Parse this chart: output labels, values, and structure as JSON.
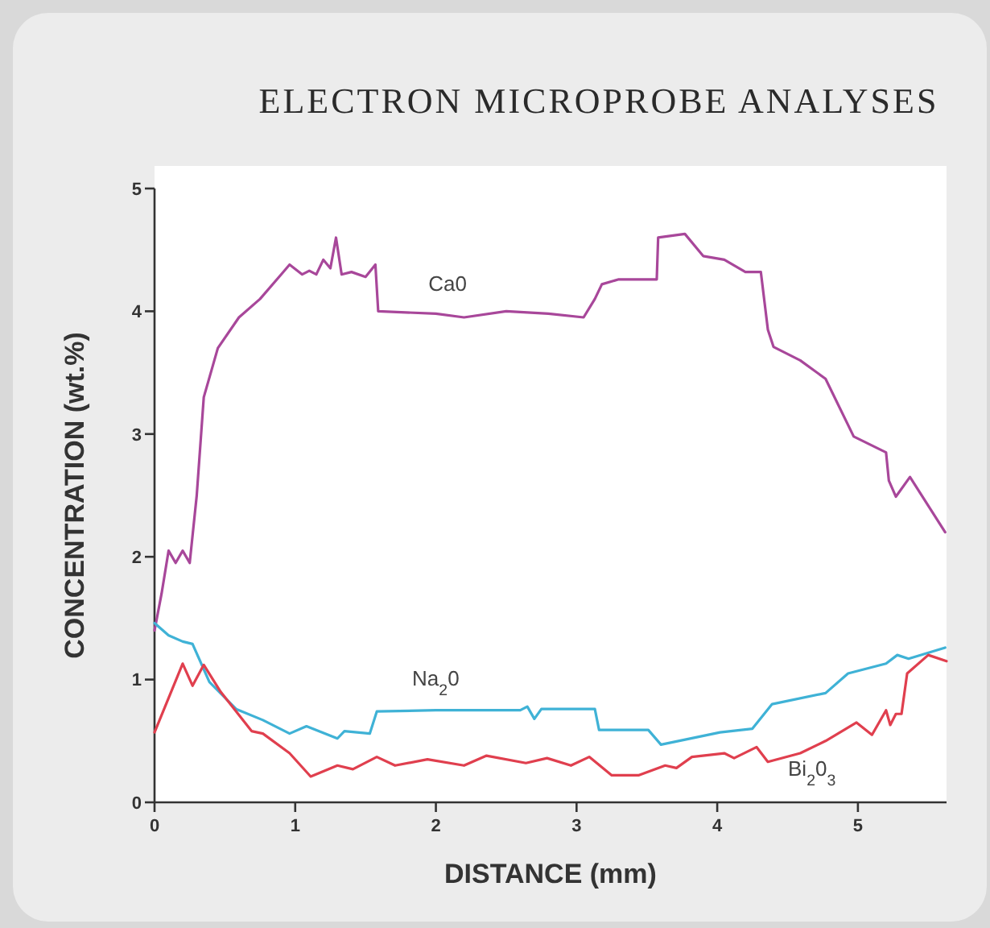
{
  "chart_data": {
    "type": "line",
    "title": "ELECTRON MICROPROBE ANALYSES",
    "xlabel": "DISTANCE (mm)",
    "ylabel": "CONCENTRATION (wt.%)",
    "xlim": [
      0,
      5.63
    ],
    "ylim": [
      0,
      5
    ],
    "xticks": [
      0,
      1,
      2,
      3,
      4,
      5
    ],
    "yticks": [
      0,
      1,
      2,
      3,
      4,
      5
    ],
    "grid": false,
    "line_style": "solid",
    "series": [
      {
        "name": "Ca0",
        "color": "#a8479a",
        "x": [
          0,
          0.05,
          0.1,
          0.15,
          0.2,
          0.25,
          0.3,
          0.35,
          0.45,
          0.6,
          0.75,
          0.9,
          0.96,
          1.05,
          1.1,
          1.15,
          1.2,
          1.25,
          1.29,
          1.33,
          1.4,
          1.5,
          1.57,
          1.59,
          2.0,
          2.2,
          2.5,
          2.8,
          3.05,
          3.13,
          3.18,
          3.3,
          3.57,
          3.58,
          3.77,
          3.9,
          4.05,
          4.2,
          4.31,
          4.36,
          4.4,
          4.59,
          4.77,
          4.97,
          5.2,
          5.22,
          5.27,
          5.37,
          5.62
        ],
        "values": [
          1.4,
          1.7,
          2.05,
          1.95,
          2.05,
          1.95,
          2.5,
          3.3,
          3.7,
          3.95,
          4.1,
          4.3,
          4.38,
          4.3,
          4.33,
          4.3,
          4.42,
          4.35,
          4.6,
          4.3,
          4.32,
          4.28,
          4.38,
          4.0,
          3.98,
          3.95,
          4.0,
          3.98,
          3.95,
          4.1,
          4.22,
          4.26,
          4.26,
          4.6,
          4.63,
          4.45,
          4.42,
          4.32,
          4.32,
          3.85,
          3.71,
          3.6,
          3.45,
          2.98,
          2.85,
          2.62,
          2.49,
          2.65,
          2.2
        ]
      },
      {
        "name": "Na$_{2}$0",
        "color": "#3fb2d6",
        "x": [
          0,
          0.1,
          0.2,
          0.27,
          0.39,
          0.58,
          0.77,
          0.96,
          1.08,
          1.3,
          1.35,
          1.53,
          1.58,
          2.0,
          2.6,
          2.65,
          2.7,
          2.75,
          3.13,
          3.16,
          3.51,
          3.6,
          4.02,
          4.25,
          4.39,
          4.77,
          4.93,
          5.2,
          5.28,
          5.36,
          5.62
        ],
        "values": [
          1.46,
          1.36,
          1.31,
          1.29,
          0.98,
          0.76,
          0.67,
          0.56,
          0.62,
          0.52,
          0.58,
          0.56,
          0.74,
          0.75,
          0.75,
          0.78,
          0.68,
          0.76,
          0.76,
          0.59,
          0.59,
          0.47,
          0.57,
          0.6,
          0.8,
          0.89,
          1.05,
          1.13,
          1.2,
          1.17,
          1.26
        ]
      },
      {
        "name": "Bi$_{2}$0$_{3}$",
        "color": "#e03f4e",
        "x": [
          0,
          0.2,
          0.27,
          0.35,
          0.47,
          0.69,
          0.77,
          0.96,
          1.11,
          1.3,
          1.41,
          1.58,
          1.71,
          1.94,
          2.2,
          2.36,
          2.64,
          2.79,
          2.96,
          3.09,
          3.25,
          3.44,
          3.63,
          3.71,
          3.82,
          4.05,
          4.12,
          4.28,
          4.36,
          4.59,
          4.77,
          4.99,
          5.1,
          5.2,
          5.23,
          5.27,
          5.31,
          5.35,
          5.5,
          5.63
        ],
        "values": [
          0.57,
          1.13,
          0.95,
          1.12,
          0.9,
          0.58,
          0.56,
          0.4,
          0.21,
          0.3,
          0.27,
          0.37,
          0.3,
          0.35,
          0.3,
          0.38,
          0.32,
          0.36,
          0.3,
          0.37,
          0.22,
          0.22,
          0.3,
          0.28,
          0.37,
          0.4,
          0.36,
          0.45,
          0.33,
          0.4,
          0.5,
          0.65,
          0.55,
          0.75,
          0.63,
          0.72,
          0.72,
          1.05,
          1.2,
          1.15
        ]
      }
    ],
    "legend": false
  }
}
